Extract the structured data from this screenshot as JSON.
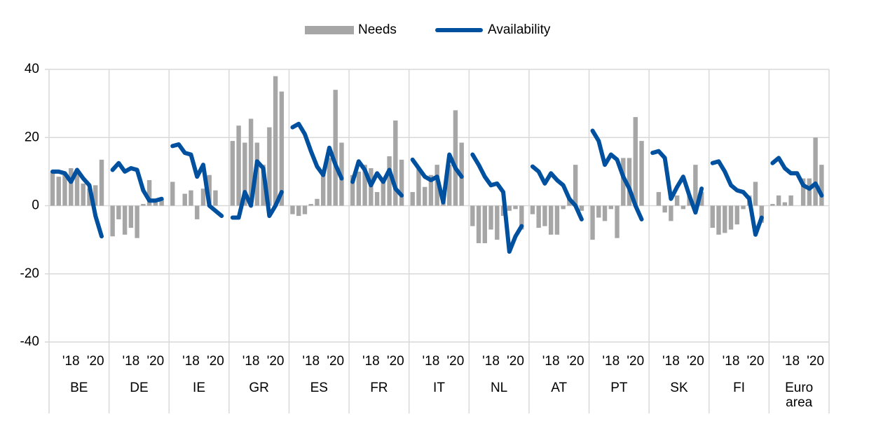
{
  "chart_data": {
    "type": "grouped-bar-line",
    "groups": [
      "BE",
      "DE",
      "IE",
      "GR",
      "ES",
      "FR",
      "IT",
      "NL",
      "AT",
      "PT",
      "SK",
      "FI",
      "Euro area"
    ],
    "periods": [
      null,
      null,
      null,
      "'18",
      null,
      null,
      null,
      "'20",
      null
    ],
    "series": [
      {
        "name": "Needs",
        "type": "bar",
        "color": "#a6a6a6",
        "values": [
          [
            10,
            8.5,
            9,
            11,
            10,
            6.5,
            5,
            6,
            13.5
          ],
          [
            -9,
            -4,
            -8.5,
            -6.5,
            -9.5,
            0.5,
            7.5,
            1,
            2
          ],
          [
            7,
            0,
            3.5,
            4.5,
            -4,
            5,
            9,
            4.5,
            0
          ],
          [
            19,
            23.5,
            18.5,
            25.5,
            18.5,
            12,
            23,
            38,
            33.5
          ],
          [
            -2.5,
            -3,
            -2.5,
            0.5,
            2,
            10,
            14,
            34,
            18.5
          ],
          [
            9,
            10,
            12,
            11,
            4,
            8,
            14.5,
            25,
            13.5
          ],
          [
            4,
            11,
            5.5,
            9,
            12,
            4,
            12,
            28,
            18.5
          ],
          [
            -6,
            -11,
            -11,
            -7,
            -10,
            -3,
            -1.5,
            -1,
            -7
          ],
          [
            -2.5,
            -6.5,
            -6,
            -8.5,
            -8.5,
            -1,
            2,
            12,
            -1.5
          ],
          [
            -10,
            -3.5,
            -4.5,
            -1,
            -9.5,
            14,
            14,
            26,
            19
          ],
          [
            0,
            4,
            -2,
            -4.5,
            3,
            -1,
            3,
            12,
            4
          ],
          [
            -6.5,
            -8.5,
            -8,
            -7,
            -5.5,
            -1,
            3,
            7,
            -5
          ],
          [
            0.5,
            3,
            1,
            3,
            0,
            8,
            8,
            20,
            12
          ]
        ]
      },
      {
        "name": "Availability",
        "type": "line",
        "color": "#0050a0",
        "values": [
          [
            10,
            10,
            9.5,
            7,
            10.5,
            8,
            6,
            -3,
            -9
          ],
          [
            10.5,
            12.5,
            10,
            11,
            10.5,
            4.5,
            1.5,
            1.5,
            2
          ],
          [
            17.5,
            18,
            15.5,
            15,
            8.5,
            12,
            0,
            -1.5,
            -3
          ],
          [
            -3.5,
            -3.5,
            4,
            0,
            13,
            11,
            -3,
            0,
            4
          ],
          [
            23,
            24,
            21,
            16,
            11.5,
            9,
            17,
            12,
            8
          ],
          [
            7,
            13,
            10.5,
            6,
            9.5,
            7,
            10.5,
            5,
            3
          ],
          [
            13.5,
            11,
            8.5,
            7.5,
            8.5,
            1,
            15,
            11,
            8.5
          ],
          [
            15,
            12,
            8.5,
            6,
            6.5,
            4,
            -13.5,
            -9,
            -6
          ],
          [
            11.5,
            10,
            6.5,
            9.5,
            7.5,
            6,
            2,
            0,
            -4
          ],
          [
            22,
            19,
            12,
            15,
            13.5,
            8.5,
            5,
            0,
            -4
          ],
          [
            15.5,
            16,
            14,
            2,
            5.5,
            8.5,
            3,
            -2,
            5
          ],
          [
            12.5,
            13,
            10,
            6,
            4.5,
            4,
            2,
            -8.5,
            -3.5
          ],
          [
            12.5,
            14,
            11,
            9.5,
            9.5,
            6,
            5,
            6.5,
            3
          ]
        ]
      }
    ],
    "ylim": [
      -40,
      40
    ],
    "yticks": [
      -40,
      -20,
      0,
      20,
      40
    ],
    "grid": true,
    "legend": "top"
  }
}
